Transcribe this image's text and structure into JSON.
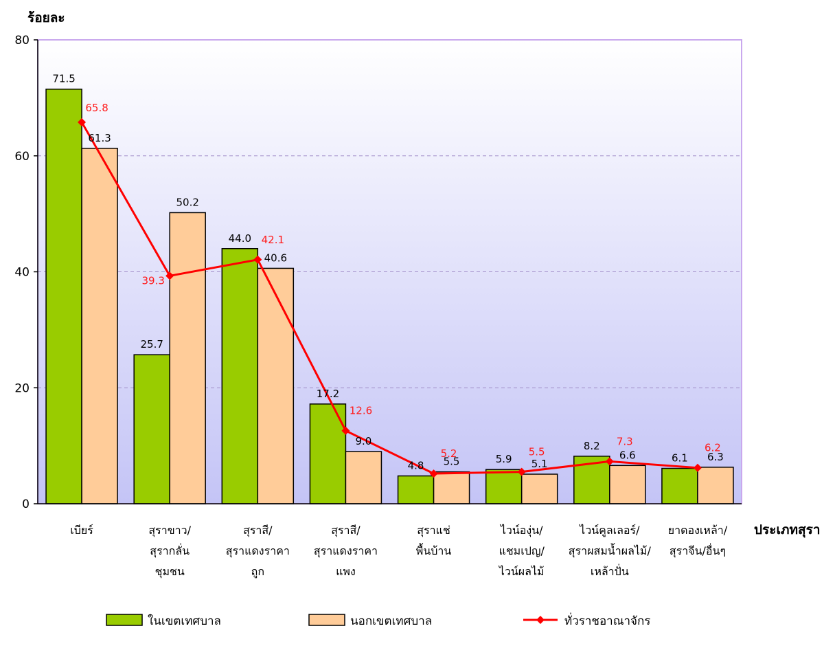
{
  "chart_data": {
    "type": "bar",
    "ylabel": "ร้อยละ",
    "xlabel": "ประเภทสุรา",
    "ylim": [
      0,
      80
    ],
    "yticks": [
      0,
      20,
      40,
      60,
      80
    ],
    "grid": true,
    "legend_position": "bottom",
    "categories": [
      [
        "เบียร์"
      ],
      [
        "สุราขาว/",
        "สุรากลั่น",
        "ชุมชน"
      ],
      [
        "สุราสี/",
        "สุราแดงราคา",
        "ถูก"
      ],
      [
        "สุราสี/",
        "สุราแดงราคา",
        "แพง"
      ],
      [
        "สุราแช่",
        "พื้นบ้าน"
      ],
      [
        "ไวน์องุ่น/",
        "แชมเปญ/",
        "ไวน์ผลไม้"
      ],
      [
        "ไวน์คูลเลอร์/",
        "สุราผสมน้ำผลไม้/",
        "เหล้าปั่น"
      ],
      [
        "ยาดองเหล้า/",
        "สุราจีน/อื่นๆ"
      ]
    ],
    "series": [
      {
        "name": "ในเขตเทศบาล",
        "kind": "bar",
        "color": "#99cc00",
        "values": [
          71.5,
          25.7,
          44.0,
          17.2,
          4.8,
          5.9,
          8.2,
          6.1
        ],
        "labels": [
          "71.5",
          "25.7",
          "44.0",
          "17.2",
          "4.8",
          "5.9",
          "8.2",
          "6.1"
        ]
      },
      {
        "name": "นอกเขตเทศบาล",
        "kind": "bar",
        "color": "#ffcc99",
        "values": [
          61.3,
          50.2,
          40.6,
          9.0,
          5.5,
          5.1,
          6.6,
          6.3
        ],
        "labels": [
          "61.3",
          "50.2",
          "40.6",
          "9.0",
          "5.5",
          "5.1",
          "6.6",
          "6.3"
        ]
      },
      {
        "name": "ทั่วราชอาณาจักร",
        "kind": "line",
        "color": "#ff0000",
        "values": [
          65.8,
          39.3,
          42.1,
          12.6,
          5.2,
          5.5,
          7.3,
          6.2
        ],
        "labels": [
          "65.8",
          "39.3",
          "42.1",
          "12.6",
          "5.2",
          "5.5",
          "7.3",
          "6.2"
        ]
      }
    ]
  }
}
